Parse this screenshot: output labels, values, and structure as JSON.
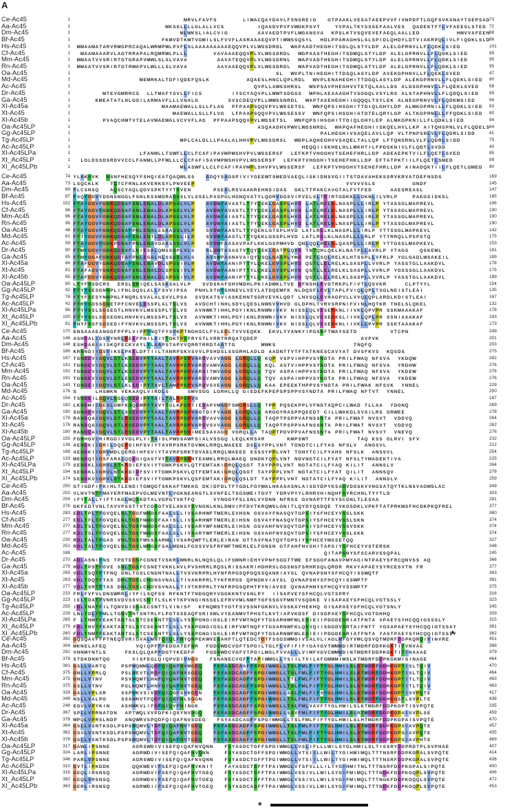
{
  "figure": {
    "panel_label": "A",
    "colors": {
      "hydrophobic": "#8fb0e6",
      "polar": "#3fc03f",
      "acidic": "#c060c8",
      "basic": "#ee3a22",
      "glycine": "#f0955a",
      "proline": "#c8cc22",
      "aromatic": "#22b0b8",
      "cysteine": "#f08a8a"
    },
    "species": [
      "Ce-Ac45",
      "Aa-Ac45",
      "Dm-Ac45",
      "Bf-Ac45",
      "Hs-Ac45",
      "Cf-Ac45",
      "Mm-Ac45",
      "Rn-Ac45",
      "Oa-Ac45",
      "Md-Ac45",
      "Ac-Ac45",
      "Dr-Ac45",
      "Ga-Ac45",
      "Xl-Ac45a",
      "Xt-Ac45",
      "Xl-Ac45b",
      "Oa-Ac45LP",
      "Gg-Ac45LP",
      "Tg-Ac45LP",
      "Ac-Ac45LP",
      "Xl-Ac45LPa",
      "Xt_Ac45LP",
      "Xl_Ac45LPb"
    ],
    "blocks": [
      {
        "starts": [
          1,
          1,
          1,
          1,
          1,
          1,
          1,
          1,
          1,
          1,
          1,
          1,
          1,
          1,
          1,
          1,
          1,
          1,
          1,
          1,
          1,
          1,
          1
        ],
        "ends": [
          73,
          72,
          68,
          86,
          101,
          95,
          95,
          95,
          47,
          80,
          58,
          89,
          94,
          83,
          80,
          94,
          64,
          41,
          75,
          40,
          85,
          99,
          80
        ],
        "seqs": [
          "                              MRVLFAVFS       LIMACQAYDAVLFSNSREIG   GTPAAKLVESATAEEPVVFIVNPDFTLGQFSVKANAYTSEPSAD",
          "                         MKSSLLLLGLALLVCS         IQASDVPVFVWGKPSVT    YVPALTKYSSSEFAALVES  QADEKTFTLVFAEESLSTED",
          "                             MLWKSLIALCVIG        AAVAEDTPVFLWGANSVA  KPSLKTVSQVEVEFAEQLAALLED          HMVVAFEENGLSSKD",
          "                        FKMVDTKMTVGMILSLFVVFLASRAAAEQVPTIMWSSQSYL  HDLPPARAGHSLSLSPIDLQHDYLDTVIAKRPQLIVLFIQDKLSLDD",
          " MMAAMATARVRMGPRCAQALWRMPWLPVFLSLAAAAAAAAAEQQVPLVLWSSDRDL  WAPAADTHEGHITSDLQLSTYLDP ALELGPRNVLLFLQDKLSIED",
          "  MAAMAAARVLAGTRRAPALRQMRWLPLLL       VAVAAAEQQVPLVLWSSDRDL  WGPAASTHEGHITSDMQLSTYLDP ALELGPRNVLLFLQDKLSIED",
          " MMAATVVSRIRTGTGRAPVMWLSLSLVAVA        AAVATEQQVPLVLWSSDRNL  WAPVADTHEGHITSDMQLSTYLDP ALELGPRNVLLFLQDKLSIED",
          " MMAATVVSRIRTGTRWAPVLWLLLSLVAVA        AAVAAEQQVPLVLWSSDRDL  WAPVADTHEGHITSDMQLSTYLDP ALELGPRNVLLFLQDKLSIED",
          "                                                       SL  WVPLTNIHEGHITTDSQLASYLDP AVEKGPHNVLLFLQEKLSVED",
          "                  MEMRKALTDFIQDEFQSLK          AQAESLHNCLQPLRDL  WVPLENAHEGHITTDGQLASYLDP ALEKGPRNVLLFLQEKLSIED",
          "                                                 QVPLLAWSSHRSL  WSPSAVPHEGHVVTETQLAALLDS ALDSGPHNVLLFLQEKLSVED",
          "        MTEVGMRRCS  LLTMAFYSVLLFICS        IYSCYAQVPLLMWTSDGSS  MPHLAEAAAGHTVSGGQLVSYLRS ALSTAPHNVLLFLQDQLSIED",
          "      KMEATATLHLGGILARMAVFLLLVNALG        SVSCDEQVPLLMWSSNRDL  WAPTASEHEGHIIGQQQLTSYLEK ALNEGPRNVVLFLQDKMSIED",
          "                        MAAMAEWALLSLLFLAG  PFPAAPSQQVPVLWSSETSL  WNFQPSIHSGHITTDIQLGHYLDP ALMKGPRNILLFLQDKLSIED",
          "                           MAEWALLSLLFLVG  LFPAAPSQQVPVLWSSESSV  WNFQPSIHSGHIATDTELQRYLGP ALTKGPRNLLLFFQDKLSIED",
          "        PVAQCHMTVTELAVMAEWALVCVVFLAG  PFPAAPSQQVPVLWSSETSL  WNFQPSIHSGHITTDIQLGHYLEP ALMKGPKNILLFLQDKLSIED",
          "                                                  ASQAADHVPWVLWSSNRDL  WAPQAFHEGHIISKQELHVLLKP AITQHSPNLVLFLQDELSIDD",
          "                                                                   PALHEGHIVSAQELAVLLQP VLTPNPSNLVLFLQDRLSIDD",
          "                             MPLCALDLLLPAALALHHVPVLWSSDRSL  WDPLAQHEGHVVSAQELTALLQP LFTQNSRNLVLFLQDRLSIDD",
          "                                                              HEQQIISKHELHLLMKHTILFPDSKNIVLFLQDTLSVDD",
          "                  LFANMLLTSWFLLCLFCAFIPAVMPMSHVPVLWSSERSF  LEFKPTVHGGHVTSEHEFHRLLDP ADEAEPKTVILFLQETLSVED",
          "  LGLDSSDSRDVVCCLFANMLLPFWLLLCLCFAFISAVMPMSHVPVLWSSERSF  LEFKPTVHGGHITSEHEFHKLLDP EFTATPKTIILFLQETLSMED",
          "                             MLASWFLLCLFCAFIPAVMPLSHVPVLWSSERSF  LEFKPTVHGGHVTSEHEFHRLLDP AINADQKTIILFLQETLGMED"
        ]
      },
      {
        "starts": [
          74,
          73,
          69,
          87,
          102,
          96,
          96,
          96,
          48,
          81,
          59,
          90,
          95,
          84,
          81,
          95,
          65,
          42,
          76,
          41,
          86,
          100,
          81
        ],
        "ends": [
          169,
          145,
          147,
          185,
          196,
          190,
          190,
          190,
          142,
          175,
          153,
          181,
          189,
          178,
          175,
          189,
          154,
          135,
          167,
          132,
          178,
          193,
          173
        ],
        "seqs": [
          "YLAKSVK  NSNFHESQYFSHQIEATQAQWLSS   ADQYSAGSPIVIYGEEWTSMEDVAEQLISKIDNSVGIITSTDAVAHEKSSRVKRVATDEFNSDS",
          "LSQCKLK   TQTCFRNLAKVERKSYLPNVEEP                                         VVVVVSLS          GNDF",
          "FLCSNSQ   AQSCYAQLQGVSPKTYYTSVEN      PSEALRSVAAKREHNSIDAS  GKLTTPAKCAVGTALFVTFED     AAESREASL",
          "FSQYGDVYDGNSNGGLFSNLKSSMDRASSSLVLSSELPASPGLHGNQVATYLQGRVDGSVIPVELSLTEIRTGDKKLLDKNLILVRLP    PAEGSIEKSL",
          "FTAYGGVFGNKQDSAFSNLENALDLAPSSLVLP   AVDWYAVASTLTTYQEKLGASPLHVD LATLRELKLNASPLLLIRLP YTASSGLMAPREVL",
          "FTAYGGVFGNKQDSAFSNLENALDLAPSSLVLP   AVDWYAVASTLTTYQEKLGASPLHVD LATLRELKLNASPLLLIRLP YTSSSGLMAPREVL",
          "FTAYGGVFGNKQDSAFSNLENALDLAPSSLVLP   AVDWYAIASTLTTYQEKLGASPLHVD LATLRELKLNASPLLLIRLP YTASSGLMAPREVL",
          "FTAYGGVFGNKQDSAFSNLENALDLAPSSLVLP   AVDWYAIASTLTTYQEKLGASPLHVD LATLRELKLNASPLLLIRLP YTASSGLMAPREVL",
          "FTAYGGVFGNKQDSAFPNLENALESAASSLVLP   SVDWYAASTLTTYQEKLGTSPLHVD LATLRELKLNASPLLLIRLP YTTSSGLMAPKEVL",
          "FTTYGGVFGNKQDSAFSNLENTLDLAPSSLILP   SVDWYAASTLTTYQEKLGSSPLHVD LATLRELKLNASPLLLLRLP YTTRRQLLPSPSTQ",
          "FTAYGGVFGNKPDSAFPNLENAVGAASSSLVLP   SVDWFAASAVPAFLKKLGSPMHVD QNLQQLRELKLQASPLLLIRLP YTTGSSLMAPKEVL",
          "FTMYGGVFGNKQDSAFLNIESALQMSSSPLVLS   ALDWTASASTVTQYQEKLGATPLQVD TNTQHLQELKLNATPLLAVRLP YTAGS   QSKEML",
          "FTMYGGAFGNKQDTAFPNLEGALNLSSSSLVLS   AVSWPASNAVAIQYQSQLGASPLYMD PETLSQLRELKLHTSSPLLVFRLP YGLGADLMSAKEIL",
          "FTAFGGVYGNKQDSAFSNLENAVDLSPSSIVLP   AVDWYAANIPTTYLQKELGVSPLHVD QSTLLELRELKLSASPLLVVRLP YASSTGLLAAKDVL",
          "FTAFAGVYGNKQDSAFSNLENALDLSPSSIVLP   AVDWYAANIPTTYLQKELGVSPLHVD QSTLLELRELKLSASPLLVVRLP YGSSSGLLAAKDVL",
          "FTAFGGVYGNKQDSAFSNLENALDLSPSSIVLP   AVDWYAANIPTTYLQKELGVSPLHVD QSTLLELRELKLSASPLLVVRLP YASSTGLLAAKDVL",
          "LTYFSSDCRS  ERSLSNIQELSASASALVLP   SVDSKAFSHVMDHLPKIADWKLTVE DFNSHLEVDTRKPLFIVTLQSVKR     CLPTYYL",
          "FTYYSESGNNPLIFNLDQSLALLFSVVIPSA  PNHLSTHYSHNEVLVEYLATDQEMFK NLDQSFLEVLTAPLFVIQLQPLTSGLNEISTLEAI",
          "FTYFSESYNNPNLFNQRLSVALALSVVLPSA  SVDKATSVIASKEHNTSGRVEVKLQDT LNVSQLEVRAGPVLLVVQLQPLARDLKDISTLEAI",
          "FTRYSDSSGNETPFCNVELESSPLALTSLVS  AVDCHTINHLSDYLQESLNWSVVHVD GLDPHLTVRVSRPNIFVINLHQTKR TNELSLQKEL",
          "FTYYSSLSGSEGTLHNVKVLMSSSPLTSLVS  AVNWKTIHHLPGYIKNLRNWNIVKV NISSLQLVESEKKNLIIVKLQPVPR SSKMAAAKAF",
          "FTYYSSLSGSEGNLHNVKVLMSSSPLTSLVS  AVNWKTIHHLPGYIKNLRNWNIVKV NISSLQLVESEKKSLIIVKLQPLPR SSNIAAAKAF",
          "FNYFSSFSGSEDIFYNVKVLMSSSPLTSLVS  AVNWKTIHHLPGYIKNLRNWNIVKV NISSLQLVESEKKNLIIVKLLPVPR SSKTAAAKAF"
        ]
      },
      {
        "starts": [
          170,
          146,
          148,
          186,
          197,
          191,
          191,
          191,
          143,
          176,
          154,
          182,
          190,
          179,
          176,
          190,
          155,
          136,
          168,
          133,
          179,
          194,
          174
        ],
        "ends": [
          249,
          201,
          203,
          275,
          282,
          276,
          276,
          276,
          229,
          250,
          187,
          269,
          278,
          264,
          262,
          276,
          232,
          222,
          254,
          225,
          264,
          278,
          259
        ],
        "seqs": [
          "ENSAAAEANGGFPFPLVIPPYNQTFYSVKPTNGHSCLFYLEGLTVVVEQKK  EKVLYYANKYIPGSNFTWAYSETD         VTCPN",
          "ASHDALIDSVYNRLREEFPNILAIYTGKTPSFRYSTLVRRTRRQATQDEP                            AVPVK",
          "ESHDAAIAISKQFECKVAYLYLAAPSTAPVVQRRTRRDTAATTG       MWKS                     TNQFQ",
          "KRNNDIIGSVIKSLPKELDFTIILTANRPSKVSVVLPSHDSLSSGRHLADLD AADNTTVTFTATKNESCAVYAT DVSFKVS  KQSDS",
          "TGNDEVIGQVLSTLKSEDVPYTAALTAVRPSRVARDVAVVAGG LGRQLLQ KQP VSPVIHPPVSYNDTA PRILFWAQ NFSVA  YKDQW",
          "TGNDEVIGQVLSTLKSEDVPYTAALTAVRPSRVARDVAMVAGG LGRQLLQ KQL ASTVIHPPVSYNDTA PRILFWAQ NFSVA  YRDHW",
          "TGNDEVIGQVLSTLKSEDVPYTAALTAVRPSRVARDITMVAGG LGRQLLQ TQV ASPAIHPPVSYNDTA PRILFWAQ NFSVA  YKDEW",
          "TGNDEVIGQVLSTLESEDVPYTAALTAVRPSRVARDVAMVAGG LGRQLLQ TQV ASPAIHPPVSYNDTA PRILFWAQ NFSVA  YKDEW",
          "TGNDEIIGQVLSTLKLEDIPYTAVLTAMRPSRVARDVSVEAGG LGRQLLQ KAA EPEEKTHPPVSYNDTA PRILFWAK NFSVK  YNNEL",
          "S     LHSMKN VEKAAQLVIRDLS     SMVSGG LGRHLLQ GIEDEFKPEPSPSPPVSYNDTA PRILFWAQ NFTVT  YNNEL",
          "TSNDEILGQVLSGLQSEDIPYTAILTALRPSRVS",
          "LKNDMIIGEVLDMFKSQDMPYTAVYTGLKPSRTIEDAPVMAGFSMGRSLLQ TPP PQSEKPPLVFNDTAQPCILWAD TLLAA  YDGNQ",
          "SGNDEVIGQVLSTLSSEDVPYTAALTAVRPSRVAGTDIFVAGG LGRQLLQ ARGGYRASPPQEEDT CILLWAKGLSVSILRS GRWEE",
          "RANDQAIGQVLSTLRSEDVPYTAALTAVRPSRVARDVAVVAGG LGRQLLQ TAQPTPSPPVAFNSSNTA PRILFWAT NVSVT  VDDVQ",
          "RANDQAIGQVLSTLRSEDVPYTAALTAVRPSRVARDVSVVAGG LGRQLLQ TAQPTPSPPVAFNSSNTA PRILFWAT NVSVT  VDDVQ",
          "RANDEAIGQVLSTLRSEDVPYTAALTAVRPSRIMEESAVAGG VGRQLLA TAQPTPDVPPVAFNSSNTA PRILFWAT NVSVT  VNEVQ",
          "FGNHGVIRIRGDIVVDLPLYITAISLPWSSAWFSIALVSSGQ LEQLKRSAR      KMPSWT             TAQ KSS GLRVI SFV",
          "AENDKIIGRILDQERGIHFSVIYTAVRPSRKTDVMKLRRQLMAEEE DSLSYPPLVNT TGNDTCILFYAS NFSLV  ANGSVL",
          "AENDKIIGRVMDLQERGIHFSVIYTAVRPSRKTDVAELRRQLMAEEE ESSSYPPLVNT TGNYTCILFYAHS NFSLK  ANSSVL",
          "MENDQIIGSFARALQQEGIQASTVYTAVRPSRNTEAMKLRRQLMAEQ GNDKYQPLVNT NDVNGTCILFYAT NFSLTYMADEKTIVA",
          "SENDKLIGRVLSTKRDIEFSVIYTGMKPSKVLQTFEMTAKIGRQLQSGT TAYPPPLVNT NGTATCILFYAQ KILIT  ANNSLV",
          "SENDKLIGRVLNTKRDIDFSVIYTGMKPSKVLQTFEMTAKIGRQLQSGT TAYPPPLVNT NGTATCILFYAT QILIT  ANNSQV",
          "SENDKVIGRVLSTKRDIEFSVIYTGMKPSKVLQSFEMTAKIGRQLQSLDT TAYPPPLVNT NGTATCILFYAQ KILIT  ANNSLV"
        ]
      },
      {
        "starts": [
          250,
          202,
          204,
          276,
          283,
          277,
          277,
          277,
          230,
          251,
          188,
          270,
          279,
          265,
          263,
          277,
          233,
          223,
          255,
          226,
          265,
          279,
          260
        ],
        "ends": [
          349,
          303,
          291,
          377,
          380,
          374,
          374,
          374,
          327,
          348,
          245,
          366,
          377,
          363,
          361,
          375,
          316,
          323,
          345,
          309,
          315,
          381,
          362
        ],
        "seqs": [
          "GTIGDFIFKIHLTLENDITGMQGTSKKAFTMKKG DKIDFDLTFTGDLFGYWALNKASASNLAISGYDPYKSASVDGSKVVNGSATQYTKLNSVAGWSLAC",
          "VLNVTNTFMAYERFMAEPVGLMEVNTLVGKNEANSTLSVNFELTSGSWEITGVT YDRVPYYLRHRVHINQHFSYRCHNLTYYTLD",
          "IFYTALLYIFTIKGLMQSKDTALVGPGTVKTFQ     VYNGGYFSLSNLVYDNN NFRSS GVNAPTTFSYSCGNLTLESAA",
          "GKFEDTVNLTAVVPSSTTVTCGSGTVELAKSYSVNGNLKNLDMVIPFDVTKRQWSLGNITLQYDYQSDQE TVKGSDKLVPKFTATPRKMSFHCDKPKQFREL",
          "EDLTPLTFGVQELNLTGGFWNDSFAALSLLIVSARHWFTMERLEVHSN GSVAYFNASQVTGPSIYSFHCEYVSSLSKK",
          "EDLTFLTFGVQELNLTGSFWNDSFAAISLLIVSARHWFTMERLEIHSN GSVAYFNASQVTGPSIYSFHCEYVSSLSKN",
          "KDLTSLTFGVQELNLTGSFWNDSFAALSLLIVSARYWFAMERLEIHSN GSVAHFNVSQVTGPSIYSFHCEYVSSVSKK",
          "KDLTSLTFGVQELNLTGSFWNDSFAALSLLIVSARYWFTMERLEIHSN GSVAHFNVSQVTGPSIYSFHCEYVSSLSKK",
          "RDLTALTFGAS VNLTGSFWSSSARMLIVSARQWFTLERLEIRAN GTTAVFNATQVTGPSIYSFHCEYMSSETQQ",
          "RDLTALTFGVQELNLTGSLWNGSFSALMDNLFGSSVVSFRFWFTMERLELFGNSN GTFAHFNVSHITAPSIYSFHCEYVSTERSK",
          "                                                                    QITAPSNYSFSCARVSSQPAL",
          "ADLASNIFNS TPDTEGSFCGNETVSKRLWNRLNLNQSLQLIFSMNRIEHYVPNFSGGTTWE EFSGGFANAVPMYAGINTPAEYSFRCQNVSS AQ",
          "HDLTPSTFGVE SNLTGSFCSNETVKKLNVLPVSHRRLRQSLRISSAKRIHDHRSLGGSNSFSRHRSQLQRDR RKVYAPAEYSYRCESVTN FR",
          "VDLTSQTFTFNQ DNLTGSLCNDNTNALLTVSVKRPRLHYNFRPGSQPGQSSQANKIAYSL QVNAPSNYSFHCQYISSWQTF",
          "VDLTDQTFTAS DNLTGSLCNDNSVNALLTIVAKRPRLTYKFRPGS QPNGKVIAYSL QVNAPSNYSFHCQYISSWPTF",
          "VDLTSRTFTAS DNLTGSLCNDVSVNALLTIVTKRPRLTYNFRPGSQPHTPYNIAVSE QVNAPHNYSFHCQYVSSWPTF",
          "FRLFVFVLDNSWRRLIYFILSQFSS RFKNTFTNDGQRYVGGKKNTVSNLPY  IISAPVEYSFHCQLVGTSPRY",
          "IELTDATFVNRSVDVSSVCSNTTLSLKYTKPVNGINSSELEFRVVMLNMFYGFSSGVFMNTVSQDKE VISAPAEYSFHCQLVGTSSLY",
          "IDLTNATFILTQNVDISSAECSNTTLVINISF  KFNQMSTYGTFSVSSNFGKNVLVSSKAYHEKHQ GISAPAEYSFHCQLVGTSNLY",
          "LNLTDLTFMLLTGNVTNTSNTRLFLPGTSSEAQFSRISMLVYEANMVTPHSTLKVTIAPVKDSF DISGPAEYSFHCQLVGTGHHQ",
          "F LTNMTFEAKTANTSLSTCSESNTTLSLLYSSPGNGIGSLEIRFVMTNQFYTGSARNWFMLESIEIIPDGDESRIATFNTA VPAEYSYHCQQIGSSSLY",
          "FDLTNVTFEAKTANTSLSTCSESNTTLSLLYSSPGNGIGSLEIRFVMTNQFYTGSARNWFKLQSVQIISDGDVSRTAIFNTT YGSAPAEYSYHCQQIGTSSAY",
          "FDLTNMTFEAKTANTSLSTCSESNTTLSLLYSSPGNGIGSLEIRFVMTNQFYTGSARNWFMLESIEIIPDGDESRIATFNTA YASTPAEYSYHCQQIGTSSLY"
        ]
      },
      {
        "starts": [
          350,
          304,
          292,
          378,
          381,
          375,
          375,
          375,
          328,
          349,
          246,
          367,
          378,
          364,
          362,
          376,
          317,
          324,
          346,
          310,
          316,
          382,
          363
        ],
        "ends": [
          451,
          388,
          379,
          464,
          470,
          464,
          463,
          463,
          417,
          438,
          335,
          459,
          470,
          457,
          455,
          469,
          407,
          414,
          436,
          400,
          406,
          472,
          453
        ],
        "seqs": [
          "GQSQAVFFPTNEQSVRIGVALMNTQIQLFNYQNPEKWVESAHFTLQTEDCTGTFSSGSWMGIVSALVLIAGLMFGYVMLQSVQTMDRFDDPKQRQIVINVRE",
          "MKNELAFEQ        VQIQPFFPEDGATEFNR  FGDSWDCVGFTSPGILTGLFLVFIFIFIGAYGVTWMMDIRTMDRFDDPKGKTITVNVAE",
          "VNNMYNTLS     FKSLQLQAPFDGTYKEDFP   FGDSWDCVGFVTPGILMGLFVVALLLVIMFVGVCWMMDINTMDRFDDPKGKTITINAAAE",
          "STDKDNNTQG      VISFEGLQIQPVDIVNGS   FSNANECVGFFTAPIWMGLLTSIILTVILAFGMMMIMSLKTMDRFDDPKGKMISINAGE",
          "GSLLVARTQ    PSPWQMMLQDFQIQAFNVMGEQ   FSYASDCASFFSPGIWMGLLTSLFMLFIFTYGLHMILSLKTMDRFDDHKGPTISLTQIV",
          "GNLLVPRLQ    PSLWEVTLRDFQIQAFNVSGEQ   FSYASDCAGFFSPGIWMGLLTSLFMLFIFTYGLHMILSLKTMDRFDDHKGPTISLTQIV",
          "GNLLVTNV     PSVWQMTLHNFQIQAFNVTGEQ   FSYASDCAGFFSPGIWMGLLTTLFMLFIFTYGLHMILSLKTMDRFDDHKGPTITLTQIV",
          "GSLLVTNV     PSLWQMTLHNFQIQAFNVTGEQ   FSYASDCAGFFSPGIWMGLLTSLFMLFIFTYGLHMILSLKTMDRFDDRKGPTITLTQIV",
          "GALLVPLSR    SSPWKVSIVDFQIQGFSVKGEN   FSYASDCAGFFSPGIWMGLLSSLFMLFIFSYGLHMILSLKTMDRFDDHKGPTISVPQTE",
          "NSLLVALPG    SSAWHVTFQDFQIQAFNLSGGN   FSYASDCAGFFSPGIWMGLLTSLFMLFIFTYGLHMILSLKTMDRFDDHKGSTLSVPLTE",
          "EGVLVPYKIN   ASHWKVLIFDFQIQVFNINDK    FSYASDCAGFFSPGIWMGLLTSLFMLVAVFTYGLHMILSLKTMDRFDDPKGPTISVPQTE",
          "SPLLVPRNATDN  APTWQLVVPDFKIQSYNVNGQ   FSYASDCAGFFSPGIWMGLLSSVFMLFIFTYGLHMILSLRTMDRFDDPKGPAISVPLSE",
          "WPQLVPRSLNDP  ANQWRVSPQDFQIQAFNVSGEG   FSYASDCAGFFSPGIWMGLLTSLFMLFIFTYGLHMILSLHTMDRFDDPKGPAISVPQTE",
          "GSLLVSNTKSDLPSPSWQMVLTDFQIQAFNVTGEQ   FSYASDCAGFFSPGIWMGLLTSLFMLFIFTYGLHMILSLKTMDRFDDPKGPSIAVPQTE",
          "GSVLVSNTKSDLPSPSWQMVLTDFQIQAFNVTGEQ   FSYASDCAGFFSPGIWMGLLTSLFMLFIFTYGLHMILSLKTMDRFDDPKGPSIAVPQTE",
          "GSLLVSNTKSDLPSPSWQMVLTDFQIQAFNVTGEQ   FSYASDCAGFFSPGIWMGLLTSLFMLFIFTYGLHMILSLKTMDRFDDPKGPSIAVPHTE",
          "GAWLIPSNNE      AGRSWDIVISEFQIQAFNVQNN   FSYASDCTGFFSPGIWMGLLVSLIFLLLWILSYGLHMILSLTISSRYDDPRDTPLSVPHAE",
          "LARLIPSNNE      AGRWDIVISEFQIQAFNVQNN    FSYASDCTGFFSPGIWMGLLVTSIILLWILTYGIHMIMQLTTTNSRFDDPKGPALSVPQTE",
          "PARLVPSNNE      AGRSWDIVISEFQIQAFNVQNN   FSYASDCTGFFTPGIWMGLLVTSIILLWILTYGIHMIMQLTTTNSRFDDPKGPALSVPQTE",
          "GVTLIPKDDK      QQKWEVIFSEFQIQAFNVKNIT   FAYASDCTSFFTPAIWMGLVTSFVLLLILTYGIHMITNLTTTNSRFDDPKGPALSIPQTE",
          "GEQLIRSNSQ      AGRWDVIFSEFQIQAFNVTGEQ   FSYASDCTSFFTPAIWMGLVSSIVLLWILSYGIFMIMQLTTTNDKFDDPKGQPLSVPQTE",
          "GEQLVRSNSQ      AGRWDVIFSEFQIQAFNVTGEQ   FSYASDCTSFFTPAIWMGLVSSIVLLWILSYGIFMIMQLTTTNGKFDDPKGQQLSVPQTE",
          "GERLIRSNSQ      AGRWDIIFSEFQIQAFNVTGEQ   FSYASDCASFFTPAIWMGLVSSIVLLWILSYGIFMIMQLTTTNDKFDDPKGQPLSVPQTE"
        ]
      }
    ],
    "annotations": {
      "asterisk_symbol": "*"
    }
  }
}
